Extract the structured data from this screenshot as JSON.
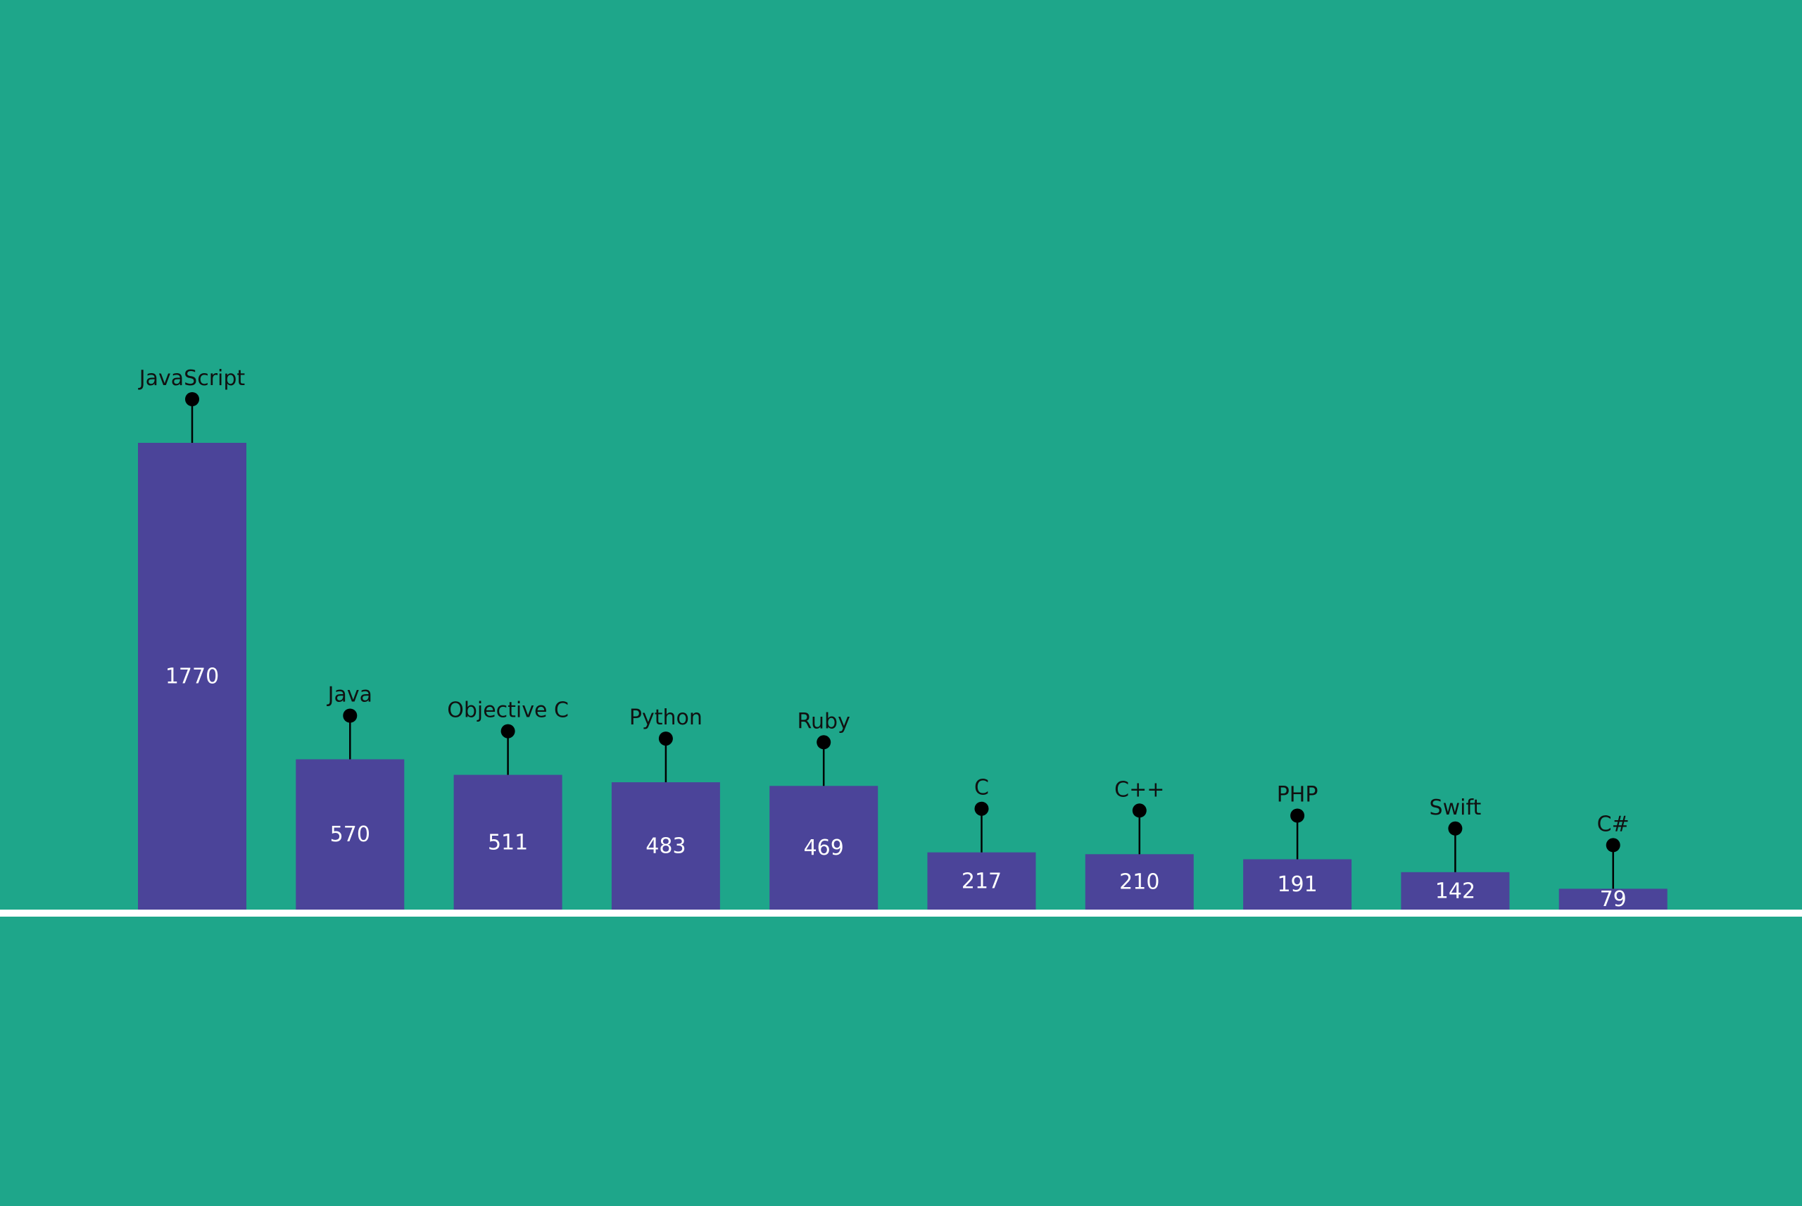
{
  "chart_data": {
    "type": "bar",
    "categories": [
      "JavaScript",
      "Java",
      "Objective C",
      "Python",
      "Ruby",
      "C",
      "C++",
      "PHP",
      "Swift",
      "C#"
    ],
    "values": [
      1770,
      570,
      511,
      483,
      469,
      217,
      210,
      191,
      142,
      79
    ],
    "data_labels": [
      "1770",
      "570",
      "511",
      "483",
      "469",
      "217",
      "210",
      "191",
      "142",
      "79"
    ],
    "title": "",
    "xlabel": "",
    "ylabel": "",
    "ylim": [
      0,
      1770
    ],
    "grid": false,
    "legend": "none",
    "category_label_placement": "above bar, on pin marker",
    "value_label_placement": "inside bar, centered"
  },
  "colors": {
    "background": "#1ea68a",
    "bar": "#4b4499",
    "baseline": "#ffffff",
    "pin": "#000000",
    "value_text": "#ffffff",
    "category_text": "#111111"
  }
}
